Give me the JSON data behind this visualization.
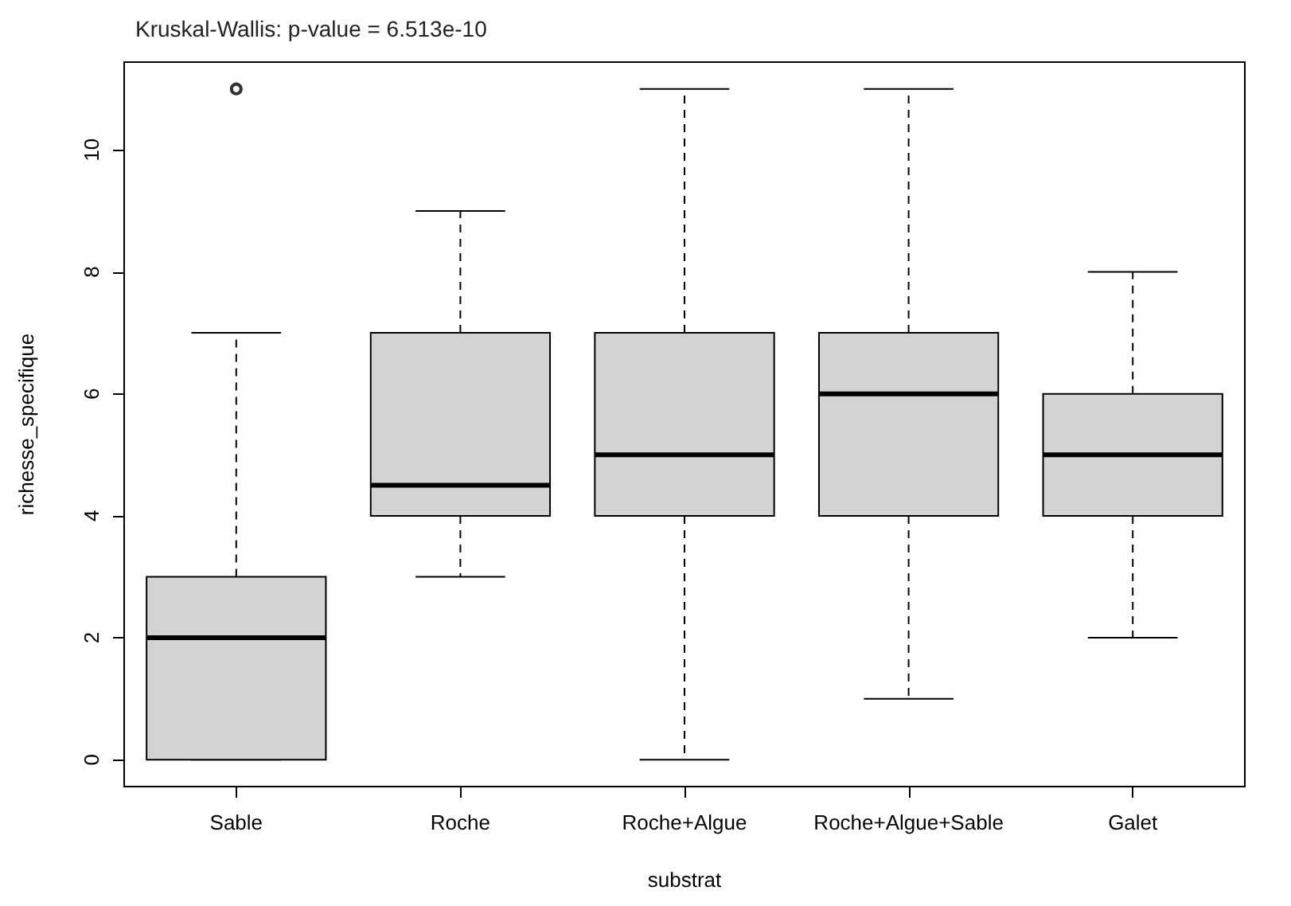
{
  "chart_data": {
    "type": "box",
    "title": "Kruskal-Wallis: p-value = 6.513e-10",
    "xlabel": "substrat",
    "ylabel": "richesse_specifique",
    "categories": [
      "Sable",
      "Roche",
      "Roche+Algue",
      "Roche+Algue+Sable",
      "Galet"
    ],
    "series": [
      {
        "color": "#d3d3d3",
        "boxes": [
          {
            "low": 0,
            "q1": 0,
            "median": 2,
            "q3": 3,
            "high": 7,
            "outliers": [
              11
            ]
          },
          {
            "low": 3,
            "q1": 4,
            "median": 4.5,
            "q3": 7,
            "high": 9
          },
          {
            "low": 0,
            "q1": 4,
            "median": 5,
            "q3": 7,
            "high": 11
          },
          {
            "low": 1,
            "q1": 4,
            "median": 6,
            "q3": 7,
            "high": 11
          },
          {
            "low": 2,
            "q1": 4,
            "median": 5,
            "q3": 6,
            "high": 8
          }
        ]
      }
    ],
    "ylim": [
      -0.44,
      11.44
    ],
    "yticks": [
      0,
      2,
      4,
      6,
      8,
      10
    ],
    "grid": false,
    "line_style": "dashed"
  }
}
